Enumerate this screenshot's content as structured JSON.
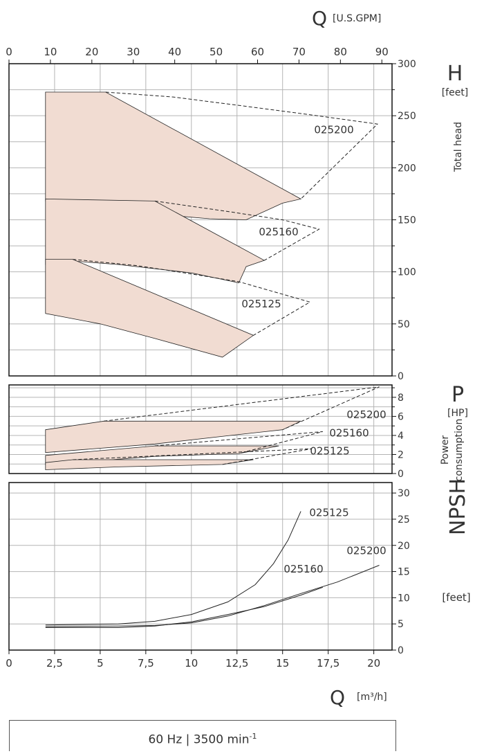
{
  "units": {
    "q_symbol": "Q",
    "q_gpm_unit": "[U.S.GPM]",
    "q_m3h_unit": "[m³/h]"
  },
  "footer": {
    "freq": "60 Hz | 3500 min",
    "sup": "-1"
  },
  "colors": {
    "band_fill": "#f1dcd2",
    "band_dark": "#e2b8a6",
    "grid": "#b4b4b4",
    "line": "#222222"
  },
  "chart_data": [
    {
      "type": "area",
      "panel": "head",
      "ylabel_symbol": "H",
      "ylabel_unit": "[feet]",
      "ylabel_desc": "Total head",
      "x_top": {
        "label": "Q [U.S.GPM]",
        "ticks": [
          0,
          10,
          20,
          30,
          40,
          50,
          60,
          70,
          80,
          90
        ],
        "lim": [
          0,
          92.5
        ]
      },
      "ylim": [
        0,
        300
      ],
      "yticks": [
        0,
        50,
        100,
        150,
        200,
        250,
        300
      ],
      "grid": true,
      "series": [
        {
          "name": "025200",
          "envelope": [
            [
              2,
              272.7
            ],
            [
              5.3,
              272.7
            ],
            [
              16,
              170
            ],
            [
              15,
              166
            ],
            [
              13,
              150
            ],
            [
              11,
              151
            ],
            [
              9,
              154
            ],
            [
              7,
              160
            ],
            [
              5,
              166
            ],
            [
              2,
              168
            ],
            [
              2,
              272.7
            ]
          ],
          "dashed": [
            [
              5.3,
              272.7
            ],
            [
              9,
              268
            ],
            [
              13,
              259
            ],
            [
              16.5,
              251
            ],
            [
              20.2,
              242
            ],
            [
              16,
              170
            ]
          ]
        },
        {
          "name": "025160",
          "envelope": [
            [
              2,
              170
            ],
            [
              8,
              168
            ],
            [
              14,
              111
            ],
            [
              13,
              105
            ],
            [
              12.6,
              89.5
            ],
            [
              10,
              99
            ],
            [
              6,
              107
            ],
            [
              3.8,
              110
            ],
            [
              2,
              107
            ],
            [
              2,
              170
            ]
          ],
          "dashed": [
            [
              8,
              168
            ],
            [
              12,
              158
            ],
            [
              15,
              150
            ],
            [
              17,
              141
            ],
            [
              14,
              111
            ]
          ]
        },
        {
          "name": "025125",
          "envelope": [
            [
              2,
              112
            ],
            [
              3.5,
              112
            ],
            [
              13.4,
              39
            ],
            [
              11.7,
              18
            ],
            [
              8,
              36
            ],
            [
              5,
              50
            ],
            [
              2,
              60
            ],
            [
              2,
              112
            ]
          ],
          "dashed": [
            [
              3.5,
              112
            ],
            [
              7,
              106
            ],
            [
              10,
              98
            ],
            [
              12.6,
              90.5
            ],
            [
              16.5,
              71
            ],
            [
              13.4,
              39
            ]
          ]
        }
      ]
    },
    {
      "type": "area",
      "panel": "power",
      "ylabel_symbol": "P",
      "ylabel_unit": "[HP]",
      "ylabel_desc": "Power consumption",
      "ylim": [
        0,
        9.3
      ],
      "yticks": [
        0,
        2,
        4,
        6,
        8
      ],
      "grid": true,
      "series": [
        {
          "name": "025200",
          "envelope": [
            [
              2,
              4.6
            ],
            [
              5.2,
              5.5
            ],
            [
              16,
              5.5
            ],
            [
              15,
              4.6
            ],
            [
              12.6,
              4.1
            ],
            [
              8,
              3.1
            ],
            [
              2,
              2.2
            ],
            [
              2,
              4.6
            ]
          ],
          "dashed": [
            [
              5.2,
              5.5
            ],
            [
              20.3,
              9.1
            ],
            [
              15,
              4.6
            ]
          ]
        },
        {
          "name": "025160",
          "envelope": [
            [
              2,
              1.9
            ],
            [
              8,
              2.9
            ],
            [
              14.8,
              2.9
            ],
            [
              12.6,
              2.1
            ],
            [
              8,
              1.8
            ],
            [
              2,
              0.9
            ],
            [
              2,
              1.9
            ]
          ],
          "dashed": [
            [
              8,
              2.9
            ],
            [
              17.2,
              4.4
            ],
            [
              12.6,
              2.1
            ]
          ]
        },
        {
          "name": "025125",
          "envelope": [
            [
              2,
              1.15
            ],
            [
              3.5,
              1.45
            ],
            [
              13.4,
              1.45
            ],
            [
              11.7,
              0.95
            ],
            [
              6,
              0.7
            ],
            [
              2,
              0.4
            ],
            [
              2,
              1.15
            ]
          ],
          "dashed": [
            [
              3.5,
              1.45
            ],
            [
              16.6,
              2.6
            ],
            [
              11.7,
              0.95
            ]
          ]
        }
      ]
    },
    {
      "type": "line",
      "panel": "npsh",
      "ylabel_symbol": "NPSH",
      "ylabel_unit": "[feet]",
      "x": {
        "label": "Q [m³/h]",
        "ticks": [
          "0",
          "2,5",
          "5",
          "7,5",
          "10",
          "12,5",
          "15",
          "17,5",
          "20"
        ],
        "values": [
          0,
          2.5,
          5,
          7.5,
          10,
          12.5,
          15,
          17.5,
          20
        ],
        "lim": [
          0,
          21
        ]
      },
      "ylim": [
        0,
        32
      ],
      "yticks": [
        0,
        5,
        10,
        15,
        20,
        25,
        30
      ],
      "grid": true,
      "series": [
        {
          "name": "025125",
          "points": [
            [
              2,
              4.8
            ],
            [
              6,
              5
            ],
            [
              8,
              5.5
            ],
            [
              10,
              6.8
            ],
            [
              12,
              9.2
            ],
            [
              13.5,
              12.5
            ],
            [
              14.5,
              16.5
            ],
            [
              15.3,
              21
            ],
            [
              16,
              26.5
            ]
          ]
        },
        {
          "name": "025160",
          "points": [
            [
              2,
              4.3
            ],
            [
              6,
              4.3
            ],
            [
              8,
              4.6
            ],
            [
              10,
              5.4
            ],
            [
              12,
              6.8
            ],
            [
              14,
              8.3
            ],
            [
              16,
              10.5
            ],
            [
              17.2,
              12
            ]
          ]
        },
        {
          "name": "025200",
          "points": [
            [
              2,
              4.5
            ],
            [
              6,
              4.6
            ],
            [
              8,
              4.7
            ],
            [
              10,
              5.2
            ],
            [
              12,
              6.5
            ],
            [
              14,
              8.5
            ],
            [
              16,
              10.8
            ],
            [
              18,
              13
            ],
            [
              20.3,
              16.2
            ]
          ]
        }
      ]
    }
  ]
}
